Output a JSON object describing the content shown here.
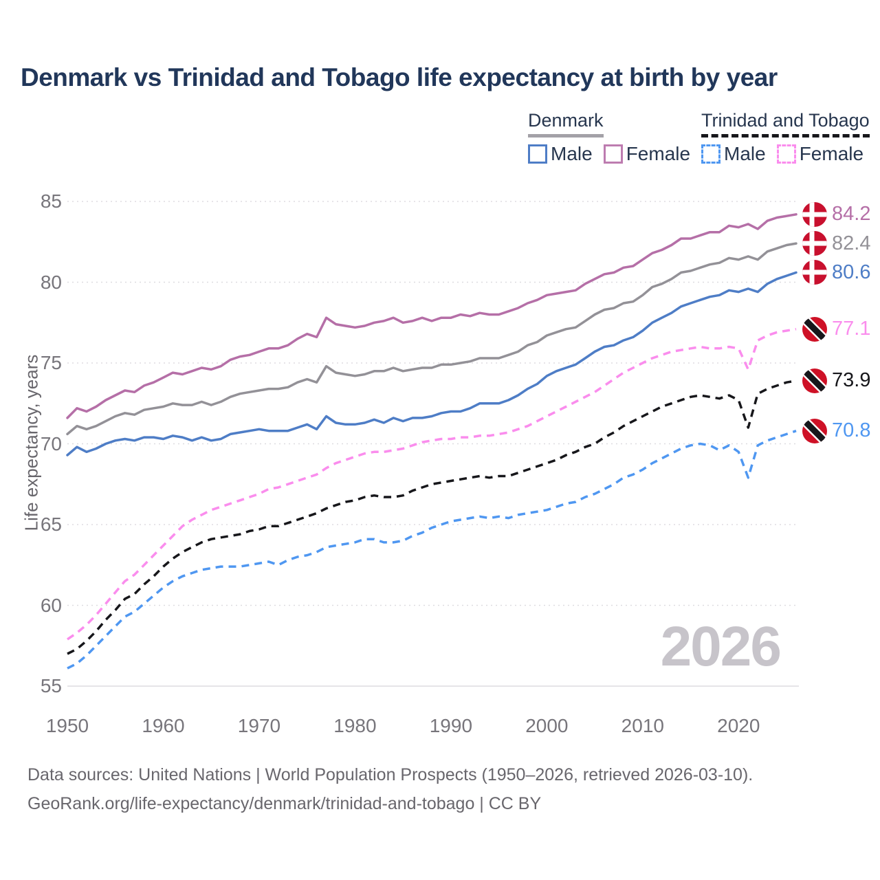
{
  "title": "Denmark vs Trinidad and Tobago life expectancy at birth by year",
  "legend": {
    "groups": [
      {
        "name": "Denmark",
        "dashed": false,
        "underline_color": "#a3a1a7",
        "items": [
          {
            "label": "Male",
            "color": "#4e7dc6",
            "dashed": false
          },
          {
            "label": "Female",
            "color": "#bd7cb0",
            "dashed": false
          }
        ]
      },
      {
        "name": "Trinidad and Tobago",
        "dashed": true,
        "underline_color": "#17171b",
        "items": [
          {
            "label": "Male",
            "color": "#4f97f1",
            "dashed": true
          },
          {
            "label": "Female",
            "color": "#fa8ded",
            "dashed": true
          }
        ]
      }
    ]
  },
  "watermark": "2026",
  "footer": {
    "line1": "Data sources: United Nations | World Population Prospects (1950–2026, retrieved 2026-03-10).",
    "line2": "GeoRank.org/life-expectancy/denmark/trinidad-and-tobago | CC BY"
  },
  "chart_data": {
    "type": "line",
    "title": "Denmark vs Trinidad and Tobago life expectancy at birth by year",
    "xlabel": "",
    "ylabel": "Life expectancy, years",
    "x_start": 1950,
    "x_end": 2026,
    "x_step": 1,
    "xticks": [
      1950,
      1960,
      1970,
      1980,
      1990,
      2000,
      2010,
      2020
    ],
    "yticks": [
      55,
      60,
      65,
      70,
      75,
      80,
      85
    ],
    "ylim": [
      55,
      85
    ],
    "grid": "horizontal-dotted",
    "legend_position": "top-right",
    "series": [
      {
        "name": "Denmark Female",
        "color": "#b56fa7",
        "dashed": false,
        "flag": "dk",
        "end_label": "84.2",
        "values": [
          71.6,
          72.2,
          72.0,
          72.3,
          72.7,
          73.0,
          73.3,
          73.2,
          73.6,
          73.8,
          74.1,
          74.4,
          74.3,
          74.5,
          74.7,
          74.6,
          74.8,
          75.2,
          75.4,
          75.5,
          75.7,
          75.9,
          75.9,
          76.1,
          76.5,
          76.8,
          76.6,
          77.8,
          77.4,
          77.3,
          77.2,
          77.3,
          77.5,
          77.6,
          77.8,
          77.5,
          77.6,
          77.8,
          77.6,
          77.8,
          77.8,
          78.0,
          77.9,
          78.1,
          78.0,
          78.0,
          78.2,
          78.4,
          78.7,
          78.9,
          79.2,
          79.3,
          79.4,
          79.5,
          79.9,
          80.2,
          80.5,
          80.6,
          80.9,
          81.0,
          81.4,
          81.8,
          82.0,
          82.3,
          82.7,
          82.7,
          82.9,
          83.1,
          83.1,
          83.5,
          83.4,
          83.6,
          83.3,
          83.8,
          84.0,
          84.1,
          84.2
        ]
      },
      {
        "name": "Denmark Total",
        "color": "#939197",
        "dashed": false,
        "flag": "dk",
        "end_label": "82.4",
        "values": [
          70.6,
          71.1,
          70.9,
          71.1,
          71.4,
          71.7,
          71.9,
          71.8,
          72.1,
          72.2,
          72.3,
          72.5,
          72.4,
          72.4,
          72.6,
          72.4,
          72.6,
          72.9,
          73.1,
          73.2,
          73.3,
          73.4,
          73.4,
          73.5,
          73.8,
          74.0,
          73.8,
          74.8,
          74.4,
          74.3,
          74.2,
          74.3,
          74.5,
          74.5,
          74.7,
          74.5,
          74.6,
          74.7,
          74.7,
          74.9,
          74.9,
          75.0,
          75.1,
          75.3,
          75.3,
          75.3,
          75.5,
          75.7,
          76.1,
          76.3,
          76.7,
          76.9,
          77.1,
          77.2,
          77.6,
          78.0,
          78.3,
          78.4,
          78.7,
          78.8,
          79.2,
          79.7,
          79.9,
          80.2,
          80.6,
          80.7,
          80.9,
          81.1,
          81.2,
          81.5,
          81.4,
          81.6,
          81.4,
          81.9,
          82.1,
          82.3,
          82.4
        ]
      },
      {
        "name": "Denmark Male",
        "color": "#4e7dc6",
        "dashed": false,
        "flag": "dk",
        "end_label": "80.6",
        "values": [
          69.3,
          69.8,
          69.5,
          69.7,
          70.0,
          70.2,
          70.3,
          70.2,
          70.4,
          70.4,
          70.3,
          70.5,
          70.4,
          70.2,
          70.4,
          70.2,
          70.3,
          70.6,
          70.7,
          70.8,
          70.9,
          70.8,
          70.8,
          70.8,
          71.0,
          71.2,
          70.9,
          71.7,
          71.3,
          71.2,
          71.2,
          71.3,
          71.5,
          71.3,
          71.6,
          71.4,
          71.6,
          71.6,
          71.7,
          71.9,
          72.0,
          72.0,
          72.2,
          72.5,
          72.5,
          72.5,
          72.7,
          73.0,
          73.4,
          73.7,
          74.2,
          74.5,
          74.7,
          74.9,
          75.3,
          75.7,
          76.0,
          76.1,
          76.4,
          76.6,
          77.0,
          77.5,
          77.8,
          78.1,
          78.5,
          78.7,
          78.9,
          79.1,
          79.2,
          79.5,
          79.4,
          79.6,
          79.4,
          79.9,
          80.2,
          80.4,
          80.6
        ]
      },
      {
        "name": "Trinidad and Tobago Female",
        "color": "#fa8ded",
        "dashed": true,
        "flag": "tt",
        "end_label": "77.1",
        "values": [
          57.9,
          58.3,
          58.8,
          59.4,
          60.1,
          60.8,
          61.5,
          61.9,
          62.5,
          63.1,
          63.7,
          64.3,
          64.9,
          65.3,
          65.6,
          65.9,
          66.1,
          66.3,
          66.5,
          66.7,
          66.9,
          67.2,
          67.3,
          67.5,
          67.7,
          67.9,
          68.1,
          68.5,
          68.8,
          69.0,
          69.2,
          69.4,
          69.5,
          69.5,
          69.6,
          69.7,
          69.9,
          70.1,
          70.2,
          70.3,
          70.3,
          70.4,
          70.4,
          70.5,
          70.5,
          70.6,
          70.7,
          70.9,
          71.1,
          71.4,
          71.7,
          72.0,
          72.3,
          72.6,
          72.9,
          73.2,
          73.6,
          74.0,
          74.4,
          74.7,
          75.0,
          75.3,
          75.5,
          75.7,
          75.8,
          75.9,
          76.0,
          75.9,
          75.9,
          76.0,
          75.9,
          74.6,
          76.4,
          76.7,
          76.9,
          77.0,
          77.1
        ]
      },
      {
        "name": "Trinidad and Tobago Total",
        "color": "#17171b",
        "dashed": true,
        "flag": "tt",
        "end_label": "73.9",
        "values": [
          57.0,
          57.3,
          57.8,
          58.4,
          59.1,
          59.7,
          60.4,
          60.7,
          61.3,
          61.8,
          62.4,
          62.9,
          63.3,
          63.6,
          63.9,
          64.1,
          64.2,
          64.3,
          64.4,
          64.6,
          64.7,
          64.9,
          64.9,
          65.1,
          65.3,
          65.5,
          65.7,
          66.0,
          66.2,
          66.4,
          66.5,
          66.7,
          66.8,
          66.7,
          66.7,
          66.8,
          67.1,
          67.3,
          67.5,
          67.6,
          67.7,
          67.8,
          67.9,
          68.0,
          67.9,
          68.0,
          68.0,
          68.2,
          68.4,
          68.6,
          68.8,
          69.0,
          69.3,
          69.5,
          69.8,
          70.0,
          70.4,
          70.7,
          71.1,
          71.4,
          71.7,
          72.0,
          72.3,
          72.5,
          72.7,
          72.9,
          73.0,
          72.9,
          72.8,
          73.0,
          72.7,
          71.0,
          73.1,
          73.4,
          73.6,
          73.8,
          73.9
        ]
      },
      {
        "name": "Trinidad and Tobago Male",
        "color": "#4f97f1",
        "dashed": true,
        "flag": "tt",
        "end_label": "70.8",
        "values": [
          56.1,
          56.4,
          56.9,
          57.5,
          58.1,
          58.7,
          59.3,
          59.6,
          60.1,
          60.6,
          61.1,
          61.5,
          61.8,
          62.0,
          62.2,
          62.3,
          62.4,
          62.4,
          62.4,
          62.5,
          62.6,
          62.7,
          62.5,
          62.8,
          63.0,
          63.1,
          63.3,
          63.6,
          63.7,
          63.8,
          63.9,
          64.1,
          64.1,
          63.9,
          63.9,
          64.0,
          64.3,
          64.5,
          64.8,
          65.0,
          65.2,
          65.3,
          65.4,
          65.5,
          65.4,
          65.5,
          65.4,
          65.6,
          65.7,
          65.8,
          65.9,
          66.1,
          66.3,
          66.4,
          66.7,
          66.9,
          67.2,
          67.5,
          67.9,
          68.1,
          68.4,
          68.8,
          69.1,
          69.4,
          69.7,
          69.9,
          70.0,
          69.9,
          69.6,
          69.9,
          69.5,
          67.9,
          69.9,
          70.2,
          70.4,
          70.6,
          70.8
        ]
      }
    ]
  }
}
